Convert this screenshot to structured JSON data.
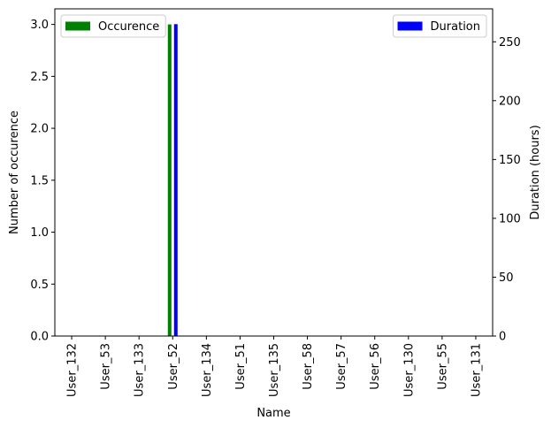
{
  "chart_data": {
    "type": "bar",
    "categories": [
      "User_132",
      "User_53",
      "User_133",
      "User_52",
      "User_134",
      "User_51",
      "User_135",
      "User_58",
      "User_57",
      "User_56",
      "User_130",
      "User_55",
      "User_131"
    ],
    "series": [
      {
        "name": "Occurence",
        "axis": "left",
        "color": "#008000",
        "values": [
          0,
          0,
          0,
          3,
          0,
          0,
          0,
          0,
          0,
          0,
          0,
          0,
          0
        ]
      },
      {
        "name": "Duration",
        "axis": "right",
        "color": "#0000ff",
        "values": [
          0,
          0,
          0,
          265,
          0,
          0,
          0,
          0,
          0,
          0,
          0,
          0,
          0
        ]
      }
    ],
    "xlabel": "Name",
    "ylabel_left": "Number of occurence",
    "ylabel_right": "Duration (hours)",
    "ylim_left": [
      0,
      3.15
    ],
    "ylim_right": [
      0,
      278
    ],
    "yticks_left": [
      "0.0",
      "0.5",
      "1.0",
      "1.5",
      "2.0",
      "2.5",
      "3.0"
    ],
    "yticks_right": [
      "0",
      "50",
      "100",
      "150",
      "200",
      "250"
    ],
    "grid": false,
    "legend_left_placement": "top-left",
    "legend_right_placement": "top-right"
  }
}
